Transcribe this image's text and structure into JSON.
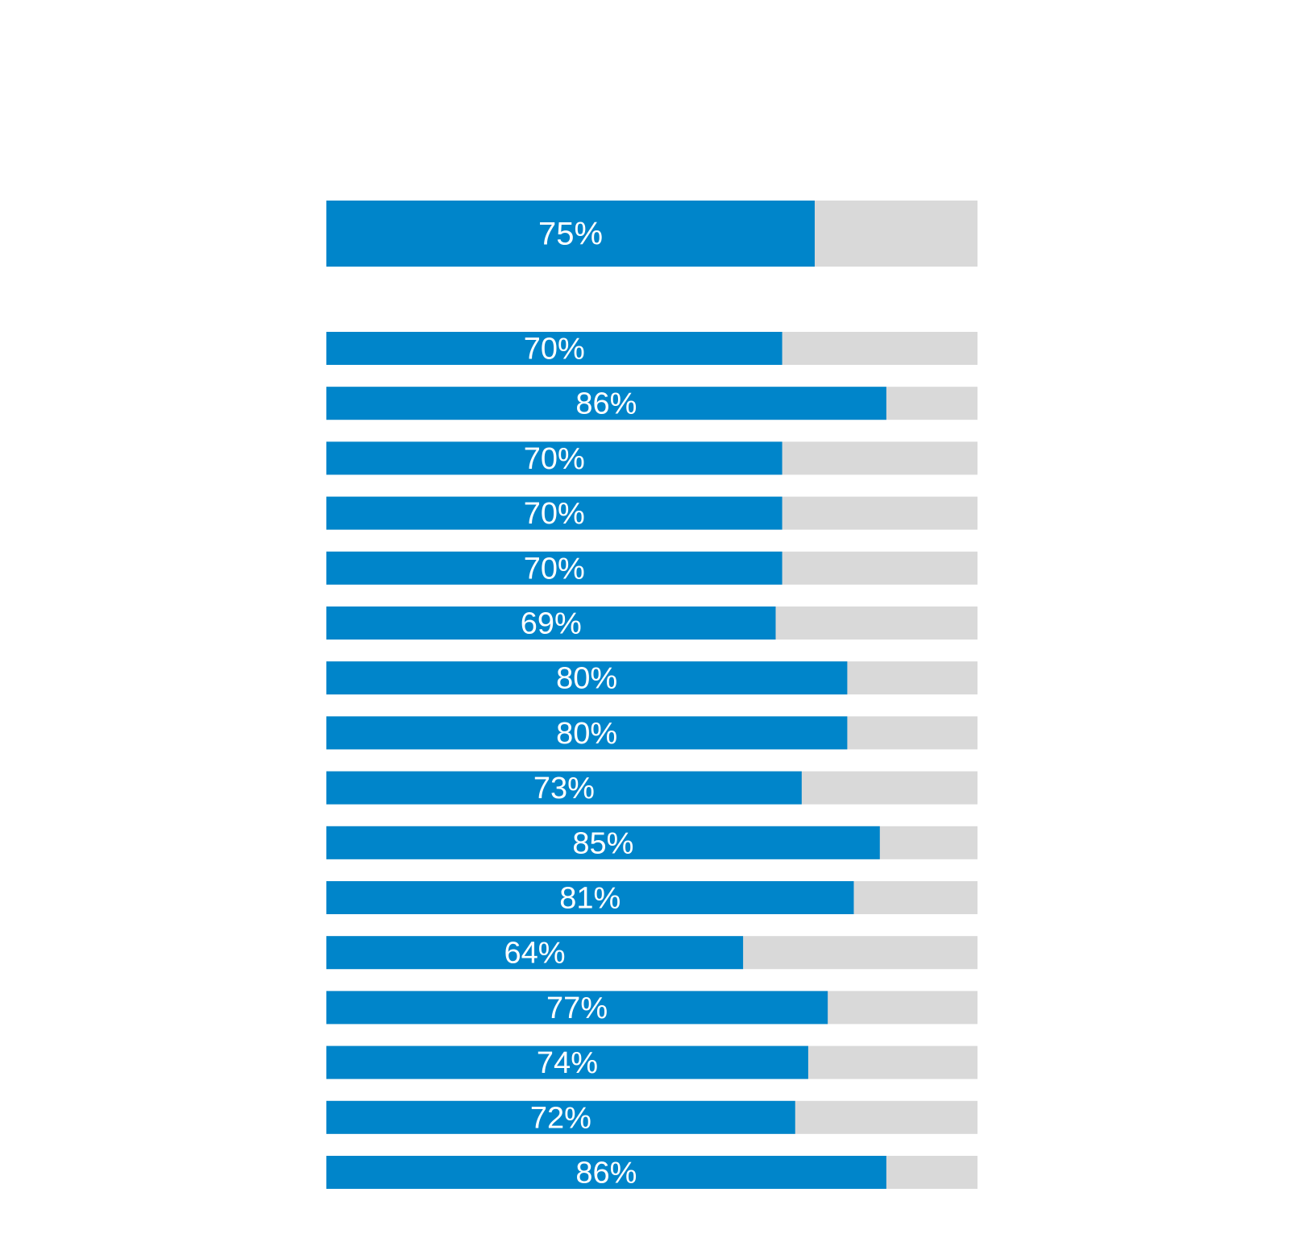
{
  "chart_data": {
    "type": "bar",
    "orientation": "horizontal",
    "title": "",
    "xlabel": "",
    "ylabel": "",
    "xlim": [
      0,
      100
    ],
    "grid": false,
    "legend": "none",
    "colors": {
      "fill": "#0085CA",
      "track": "#D9D9D9",
      "label": "#FFFFFF"
    },
    "overall": {
      "value": 75,
      "label": "75%"
    },
    "rows": [
      {
        "value": 70,
        "label": "70%"
      },
      {
        "value": 86,
        "label": "86%"
      },
      {
        "value": 70,
        "label": "70%"
      },
      {
        "value": 70,
        "label": "70%"
      },
      {
        "value": 70,
        "label": "70%"
      },
      {
        "value": 69,
        "label": "69%"
      },
      {
        "value": 80,
        "label": "80%"
      },
      {
        "value": 80,
        "label": "80%"
      },
      {
        "value": 73,
        "label": "73%"
      },
      {
        "value": 85,
        "label": "85%"
      },
      {
        "value": 81,
        "label": "81%"
      },
      {
        "value": 64,
        "label": "64%"
      },
      {
        "value": 77,
        "label": "77%"
      },
      {
        "value": 74,
        "label": "74%"
      },
      {
        "value": 72,
        "label": "72%"
      },
      {
        "value": 86,
        "label": "86%"
      }
    ]
  }
}
